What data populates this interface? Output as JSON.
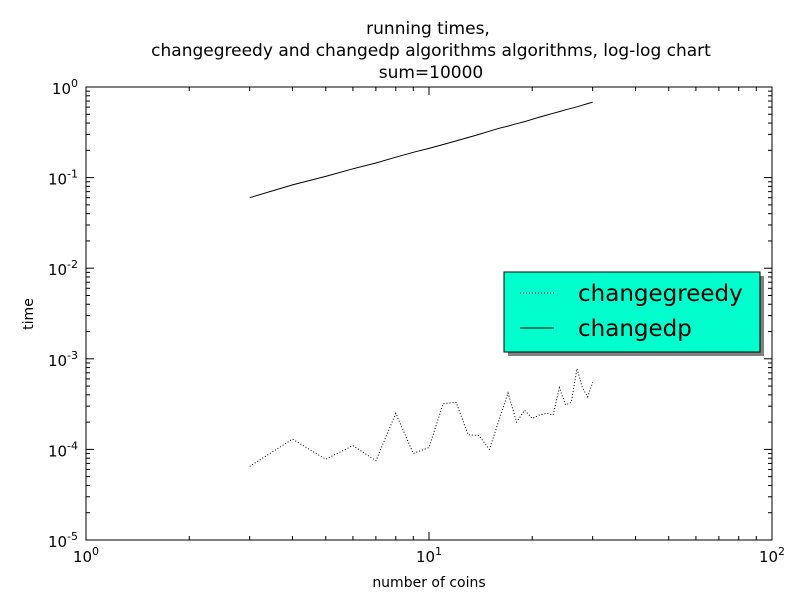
{
  "chart_data": {
    "type": "line",
    "title": [
      "running times,",
      "changegreedy and changedp algorithms algorithms, log-log chart",
      "sum=10000"
    ],
    "xlabel": "number of coins",
    "ylabel": "time",
    "xscale": "log",
    "yscale": "log",
    "xlim": [
      1,
      100
    ],
    "ylim": [
      1e-05,
      1
    ],
    "xticks": [
      {
        "value": 1,
        "base": "10",
        "exp": "0"
      },
      {
        "value": 10,
        "base": "10",
        "exp": "1"
      },
      {
        "value": 100,
        "base": "10",
        "exp": "2"
      }
    ],
    "yticks": [
      {
        "value": 1,
        "base": "10",
        "exp": "0"
      },
      {
        "value": 0.1,
        "base": "10",
        "exp": "-1"
      },
      {
        "value": 0.01,
        "base": "10",
        "exp": "-2"
      },
      {
        "value": 0.001,
        "base": "10",
        "exp": "-3"
      },
      {
        "value": 0.0001,
        "base": "10",
        "exp": "-4"
      },
      {
        "value": 1e-05,
        "base": "10",
        "exp": "-5"
      }
    ],
    "grid": false,
    "legend_position": "center-right",
    "legend_bg": "#00ffcc",
    "series": [
      {
        "name": "changegreedy",
        "style": "dotted",
        "color": "#000000",
        "x": [
          3,
          4,
          5,
          6,
          7,
          8,
          9,
          10,
          11,
          12,
          13,
          14,
          15,
          16,
          17,
          18,
          19,
          20,
          21,
          22,
          23,
          24,
          25,
          26,
          27,
          28,
          29,
          30
        ],
        "y": [
          6.5e-05,
          0.00013,
          7.8e-05,
          0.00011,
          7.5e-05,
          0.00025,
          9e-05,
          0.000105,
          0.00032,
          0.00033,
          0.000145,
          0.000142,
          0.0001,
          0.00021,
          0.00042,
          0.0002,
          0.00027,
          0.00022,
          0.00024,
          0.00025,
          0.00024,
          0.00048,
          0.00031,
          0.00033,
          0.00078,
          0.00048,
          0.00038,
          0.00055
        ]
      },
      {
        "name": "changedp",
        "style": "solid",
        "color": "#000000",
        "x": [
          3,
          4,
          5,
          6,
          7,
          8,
          9,
          10,
          11,
          12,
          13,
          14,
          15,
          16,
          17,
          18,
          19,
          20,
          21,
          22,
          23,
          24,
          25,
          26,
          27,
          28,
          29,
          30
        ],
        "y": [
          0.06,
          0.083,
          0.103,
          0.125,
          0.145,
          0.168,
          0.19,
          0.21,
          0.232,
          0.254,
          0.277,
          0.3,
          0.325,
          0.35,
          0.37,
          0.393,
          0.415,
          0.44,
          0.465,
          0.49,
          0.513,
          0.535,
          0.56,
          0.582,
          0.605,
          0.63,
          0.655,
          0.68
        ]
      }
    ]
  }
}
